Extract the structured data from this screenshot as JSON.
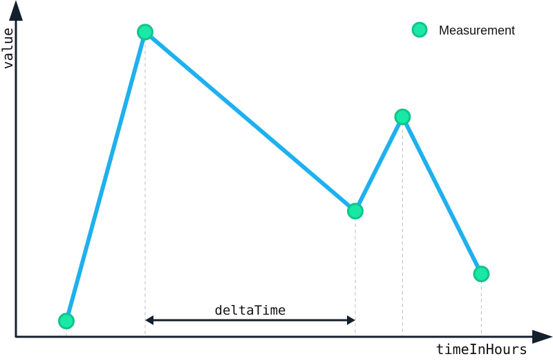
{
  "chart_data": {
    "type": "line",
    "xlabel": "timeInHours",
    "ylabel": "value",
    "series": [
      {
        "name": "Measurement",
        "x": [
          1.0,
          2.5,
          6.5,
          7.4,
          8.9
        ],
        "y": [
          0.5,
          9.7,
          4.0,
          7.0,
          2.0
        ]
      }
    ],
    "xlim": [
      0,
      10
    ],
    "ylim": [
      0,
      10.5
    ],
    "ticks_shown": false,
    "grid": false,
    "drop_lines": true,
    "legend": {
      "position": "top-right"
    },
    "annotations": [
      {
        "text": "deltaTime",
        "type": "double-arrow",
        "from_x": 2.5,
        "to_x": 6.5
      }
    ],
    "colors": {
      "line": "#1fb0ee",
      "marker_fill": "#19e8a6",
      "marker_stroke": "#12c38b",
      "axis": "#14202c",
      "drop_line": "#c8c8c8"
    }
  }
}
